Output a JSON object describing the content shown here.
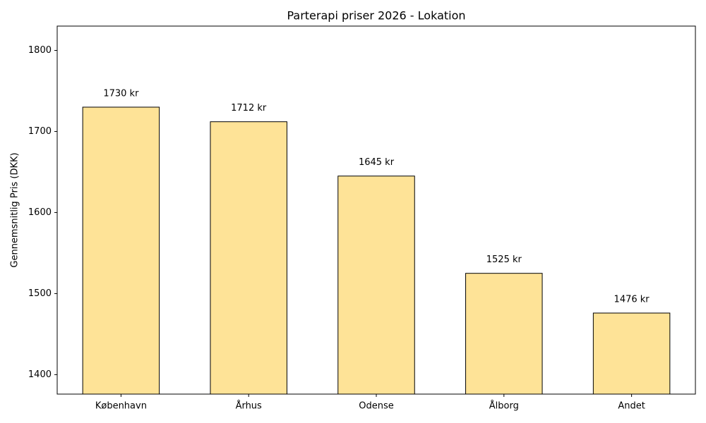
{
  "chart_data": {
    "type": "bar",
    "title": "Parterapi priser 2026 - Lokation",
    "y_label": "Gennemsnitlig Pris (DKK)",
    "categories": [
      "København",
      "Århus",
      "Odense",
      "Ålborg",
      "Andet"
    ],
    "values": [
      1730,
      1712,
      1645,
      1525,
      1476
    ],
    "value_labels": [
      "1730 kr",
      "1712 kr",
      "1645 kr",
      "1525 kr",
      "1476 kr"
    ],
    "color": "#fee397",
    "edgecolor": "#000000",
    "ylim": [
      1376,
      1830
    ],
    "yticks": [
      1400,
      1500,
      1600,
      1700,
      1800
    ],
    "grid": false
  }
}
